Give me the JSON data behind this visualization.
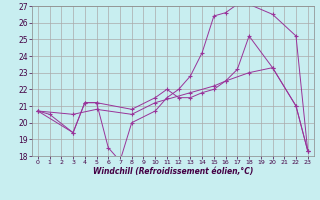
{
  "xlabel": "Windchill (Refroidissement éolien,°C)",
  "bg_color": "#c8eef0",
  "grid_color": "#aaaaaa",
  "line_color": "#993399",
  "xlim": [
    -0.5,
    23.5
  ],
  "ylim": [
    18,
    27
  ],
  "xticks": [
    0,
    1,
    2,
    3,
    4,
    5,
    6,
    7,
    8,
    9,
    10,
    11,
    12,
    13,
    14,
    15,
    16,
    17,
    18,
    19,
    20,
    21,
    22,
    23
  ],
  "yticks": [
    18,
    19,
    20,
    21,
    22,
    23,
    24,
    25,
    26,
    27
  ],
  "line1_x": [
    0,
    1,
    3,
    4,
    5,
    6,
    7,
    8,
    10,
    11,
    12,
    13,
    14,
    15,
    16,
    17,
    18,
    20,
    22,
    23
  ],
  "line1_y": [
    20.7,
    20.5,
    19.4,
    21.2,
    21.2,
    18.5,
    17.7,
    20.0,
    20.7,
    21.5,
    22.0,
    22.8,
    24.2,
    26.4,
    26.6,
    27.1,
    27.1,
    26.5,
    25.2,
    18.3
  ],
  "line2_x": [
    0,
    3,
    4,
    5,
    8,
    10,
    11,
    12,
    13,
    14,
    15,
    16,
    17,
    18,
    20,
    22,
    23
  ],
  "line2_y": [
    20.7,
    19.4,
    21.2,
    21.2,
    20.8,
    21.5,
    22.0,
    21.5,
    21.5,
    21.8,
    22.0,
    22.5,
    23.2,
    25.2,
    23.3,
    21.0,
    18.3
  ],
  "line3_x": [
    0,
    3,
    5,
    8,
    10,
    13,
    15,
    16,
    18,
    20,
    22,
    23
  ],
  "line3_y": [
    20.7,
    20.5,
    20.8,
    20.5,
    21.2,
    21.8,
    22.2,
    22.5,
    23.0,
    23.3,
    21.0,
    18.3
  ]
}
